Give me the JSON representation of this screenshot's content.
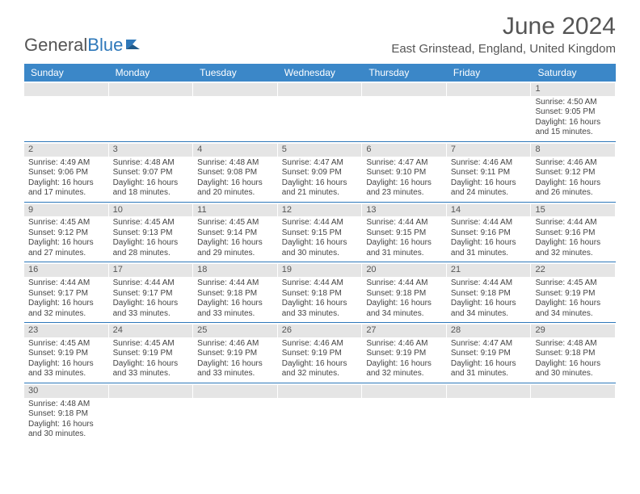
{
  "logo": {
    "text1": "General",
    "text2": "Blue"
  },
  "title": "June 2024",
  "location": "East Grinstead, England, United Kingdom",
  "colors": {
    "header_bg": "#3b87c8",
    "header_text": "#ffffff",
    "divider": "#2e78ba",
    "daynum_bg": "#e5e5e5",
    "text": "#444444",
    "title_text": "#555555"
  },
  "day_names": [
    "Sunday",
    "Monday",
    "Tuesday",
    "Wednesday",
    "Thursday",
    "Friday",
    "Saturday"
  ],
  "weeks": [
    [
      null,
      null,
      null,
      null,
      null,
      null,
      {
        "n": "1",
        "sr": "4:50 AM",
        "ss": "9:05 PM",
        "dl": "16 hours and 15 minutes."
      }
    ],
    [
      {
        "n": "2",
        "sr": "4:49 AM",
        "ss": "9:06 PM",
        "dl": "16 hours and 17 minutes."
      },
      {
        "n": "3",
        "sr": "4:48 AM",
        "ss": "9:07 PM",
        "dl": "16 hours and 18 minutes."
      },
      {
        "n": "4",
        "sr": "4:48 AM",
        "ss": "9:08 PM",
        "dl": "16 hours and 20 minutes."
      },
      {
        "n": "5",
        "sr": "4:47 AM",
        "ss": "9:09 PM",
        "dl": "16 hours and 21 minutes."
      },
      {
        "n": "6",
        "sr": "4:47 AM",
        "ss": "9:10 PM",
        "dl": "16 hours and 23 minutes."
      },
      {
        "n": "7",
        "sr": "4:46 AM",
        "ss": "9:11 PM",
        "dl": "16 hours and 24 minutes."
      },
      {
        "n": "8",
        "sr": "4:46 AM",
        "ss": "9:12 PM",
        "dl": "16 hours and 26 minutes."
      }
    ],
    [
      {
        "n": "9",
        "sr": "4:45 AM",
        "ss": "9:12 PM",
        "dl": "16 hours and 27 minutes."
      },
      {
        "n": "10",
        "sr": "4:45 AM",
        "ss": "9:13 PM",
        "dl": "16 hours and 28 minutes."
      },
      {
        "n": "11",
        "sr": "4:45 AM",
        "ss": "9:14 PM",
        "dl": "16 hours and 29 minutes."
      },
      {
        "n": "12",
        "sr": "4:44 AM",
        "ss": "9:15 PM",
        "dl": "16 hours and 30 minutes."
      },
      {
        "n": "13",
        "sr": "4:44 AM",
        "ss": "9:15 PM",
        "dl": "16 hours and 31 minutes."
      },
      {
        "n": "14",
        "sr": "4:44 AM",
        "ss": "9:16 PM",
        "dl": "16 hours and 31 minutes."
      },
      {
        "n": "15",
        "sr": "4:44 AM",
        "ss": "9:16 PM",
        "dl": "16 hours and 32 minutes."
      }
    ],
    [
      {
        "n": "16",
        "sr": "4:44 AM",
        "ss": "9:17 PM",
        "dl": "16 hours and 32 minutes."
      },
      {
        "n": "17",
        "sr": "4:44 AM",
        "ss": "9:17 PM",
        "dl": "16 hours and 33 minutes."
      },
      {
        "n": "18",
        "sr": "4:44 AM",
        "ss": "9:18 PM",
        "dl": "16 hours and 33 minutes."
      },
      {
        "n": "19",
        "sr": "4:44 AM",
        "ss": "9:18 PM",
        "dl": "16 hours and 33 minutes."
      },
      {
        "n": "20",
        "sr": "4:44 AM",
        "ss": "9:18 PM",
        "dl": "16 hours and 34 minutes."
      },
      {
        "n": "21",
        "sr": "4:44 AM",
        "ss": "9:18 PM",
        "dl": "16 hours and 34 minutes."
      },
      {
        "n": "22",
        "sr": "4:45 AM",
        "ss": "9:19 PM",
        "dl": "16 hours and 34 minutes."
      }
    ],
    [
      {
        "n": "23",
        "sr": "4:45 AM",
        "ss": "9:19 PM",
        "dl": "16 hours and 33 minutes."
      },
      {
        "n": "24",
        "sr": "4:45 AM",
        "ss": "9:19 PM",
        "dl": "16 hours and 33 minutes."
      },
      {
        "n": "25",
        "sr": "4:46 AM",
        "ss": "9:19 PM",
        "dl": "16 hours and 33 minutes."
      },
      {
        "n": "26",
        "sr": "4:46 AM",
        "ss": "9:19 PM",
        "dl": "16 hours and 32 minutes."
      },
      {
        "n": "27",
        "sr": "4:46 AM",
        "ss": "9:19 PM",
        "dl": "16 hours and 32 minutes."
      },
      {
        "n": "28",
        "sr": "4:47 AM",
        "ss": "9:19 PM",
        "dl": "16 hours and 31 minutes."
      },
      {
        "n": "29",
        "sr": "4:48 AM",
        "ss": "9:18 PM",
        "dl": "16 hours and 30 minutes."
      }
    ],
    [
      {
        "n": "30",
        "sr": "4:48 AM",
        "ss": "9:18 PM",
        "dl": "16 hours and 30 minutes."
      },
      null,
      null,
      null,
      null,
      null,
      null
    ]
  ],
  "labels": {
    "sunrise": "Sunrise:",
    "sunset": "Sunset:",
    "daylight": "Daylight:"
  }
}
